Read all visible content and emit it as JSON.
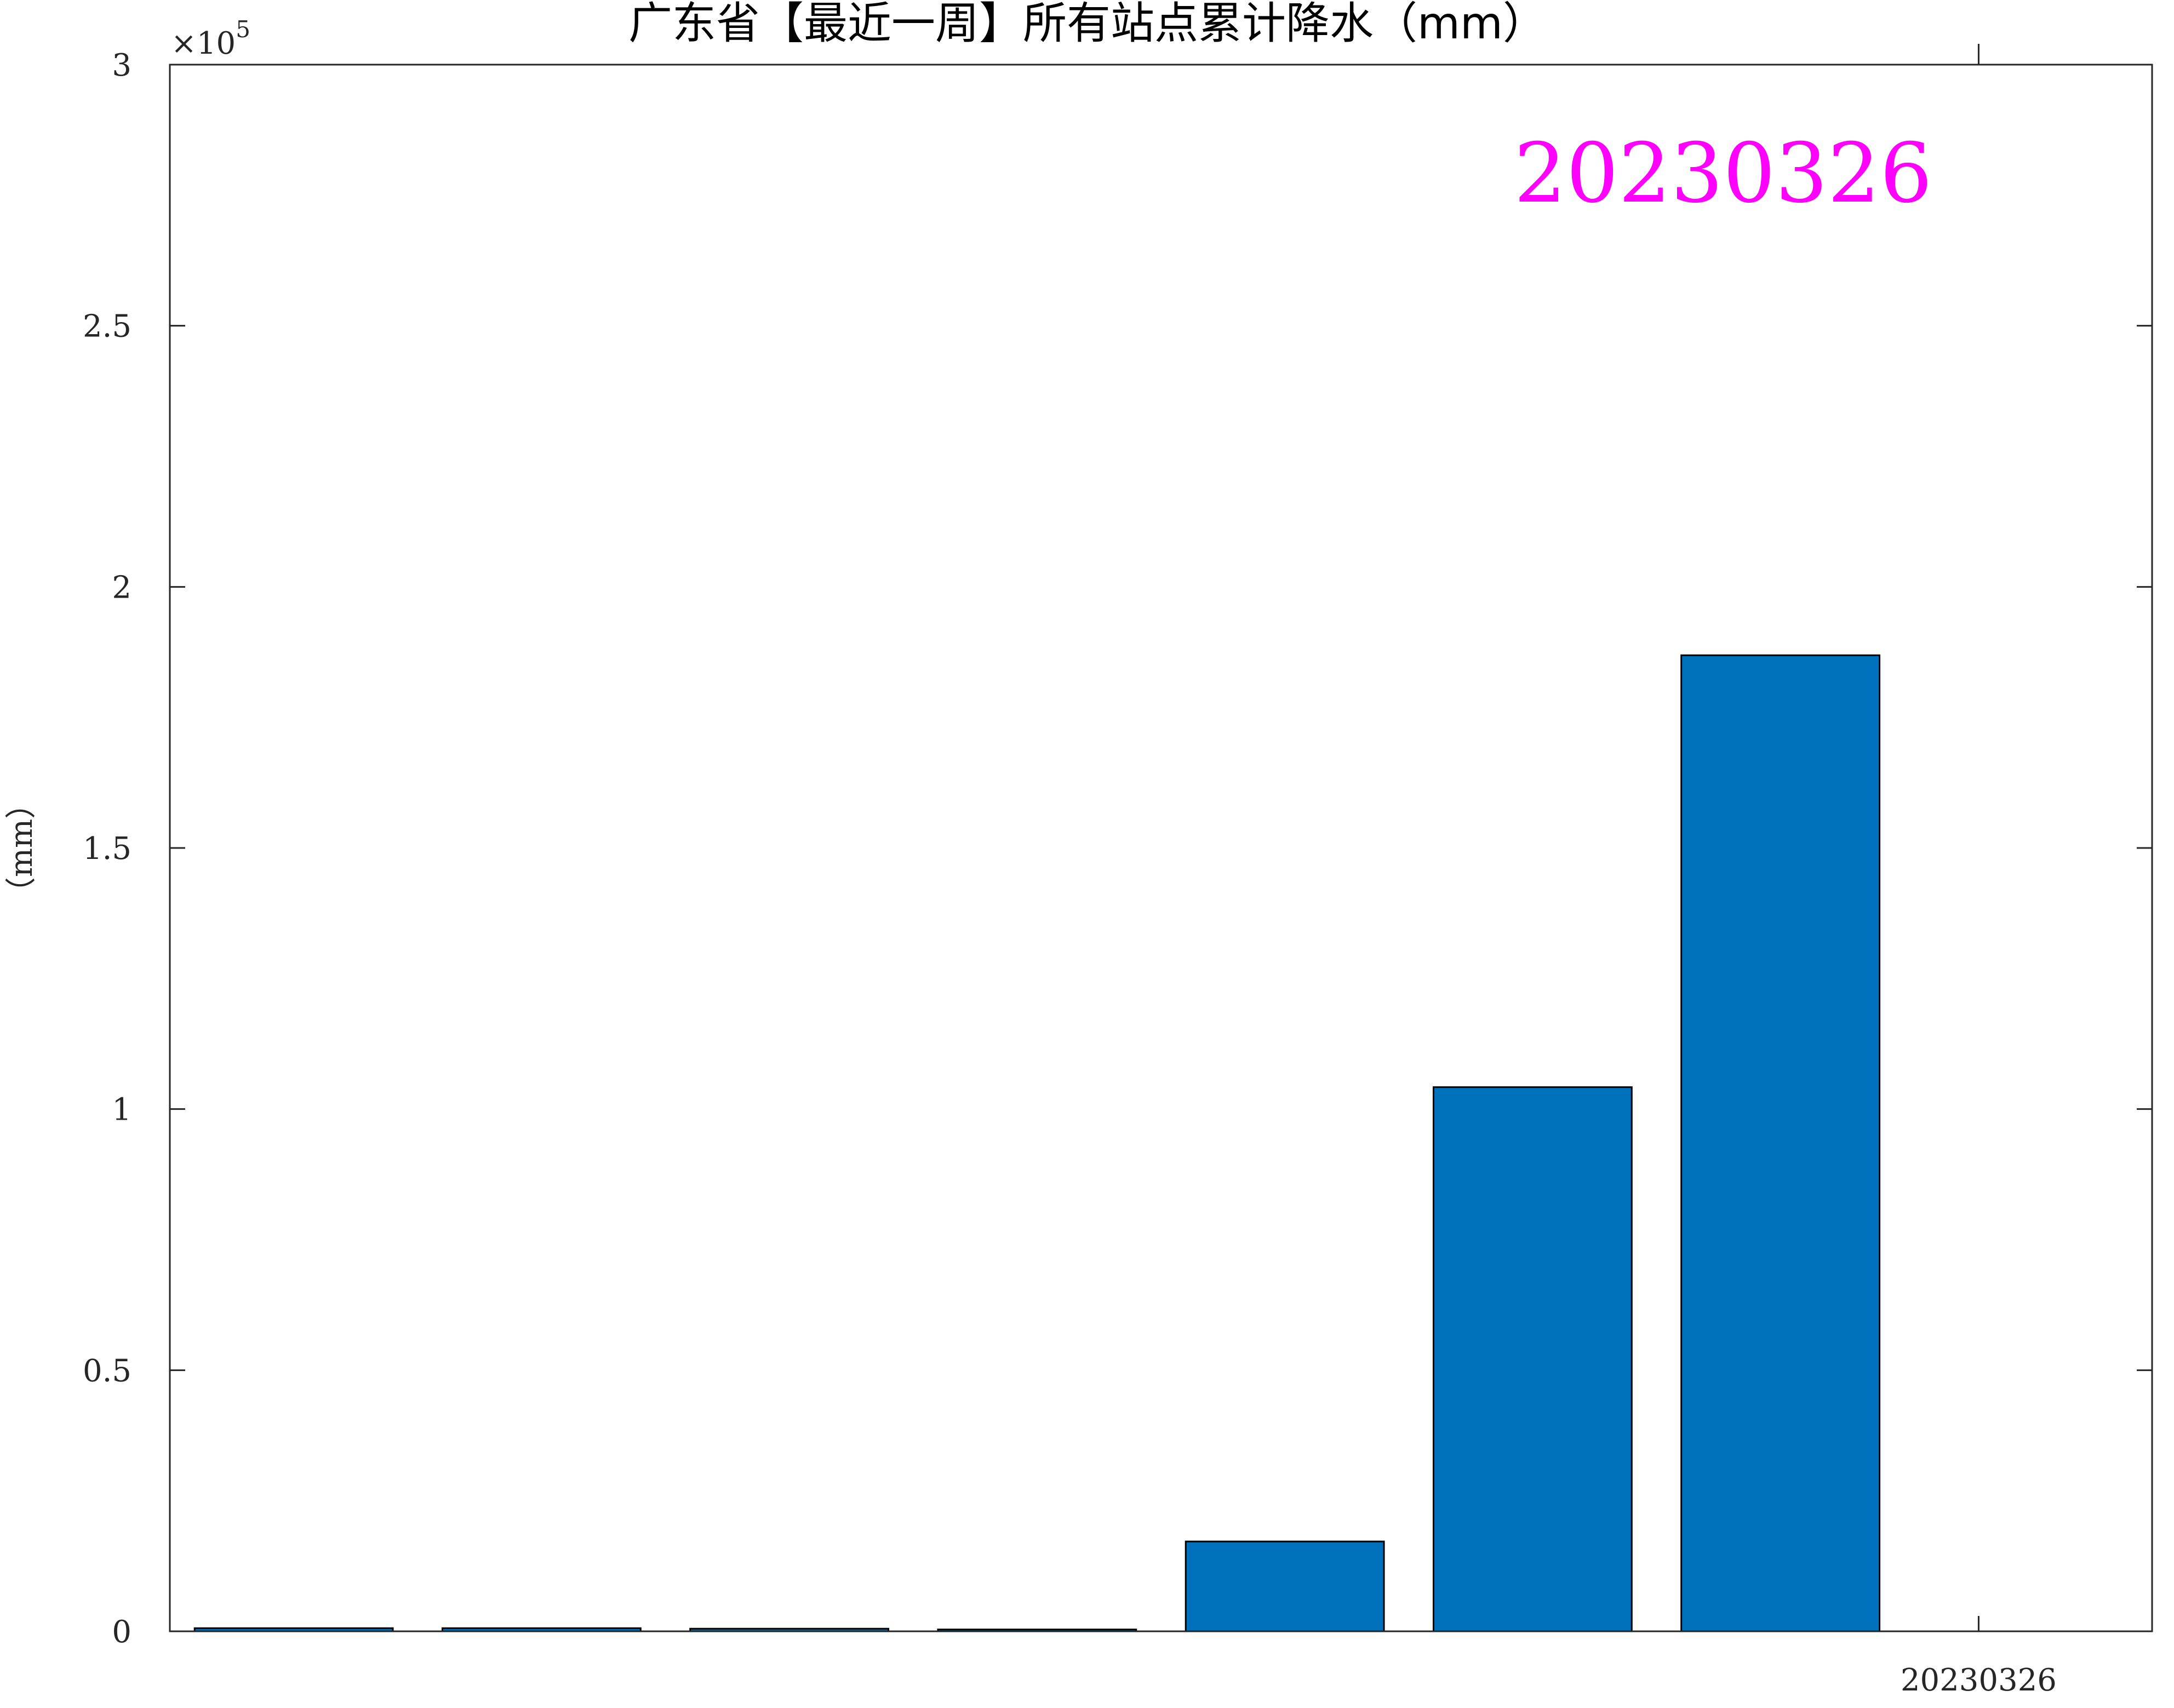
{
  "chart_data": {
    "type": "bar",
    "title": "广东省【最近一周】所有站点累计降水（mm）",
    "ylabel": "（mm）",
    "xlabel": "",
    "ylim": [
      0,
      300000
    ],
    "yticks": [
      0,
      50000,
      100000,
      150000,
      200000,
      250000,
      300000
    ],
    "ytick_labels": [
      "0",
      "0.5",
      "1",
      "1.5",
      "2",
      "2.5",
      "3"
    ],
    "y_exponent_label": "×10",
    "y_exponent": "5",
    "xlim": [
      0.5,
      8.5
    ],
    "xticks": [
      7.8
    ],
    "xtick_labels": [
      "20230326"
    ],
    "x": [
      1,
      2,
      3,
      4,
      5,
      6,
      7
    ],
    "values": [
      600,
      600,
      500,
      350,
      17200,
      104200,
      186900
    ],
    "bar_color": "#0072BD",
    "bar_edge_color": "#000000",
    "grid": false,
    "annotation": {
      "text": "20230326",
      "color": "#FF00FF"
    }
  }
}
